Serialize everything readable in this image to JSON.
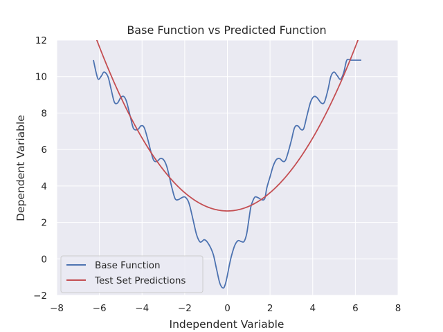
{
  "chart_data": {
    "type": "line",
    "title": "Base Function vs Predicted Function",
    "xlabel": "Independent Variable",
    "ylabel": "Dependent Variable",
    "xlim": [
      -8,
      8
    ],
    "ylim": [
      -2,
      12
    ],
    "xticks": [
      -8,
      -6,
      -4,
      -2,
      0,
      2,
      4,
      6,
      8
    ],
    "yticks": [
      -2,
      0,
      2,
      4,
      6,
      8,
      10,
      12
    ],
    "xtick_labels": [
      "−8",
      "−6",
      "−4",
      "−2",
      "0",
      "2",
      "4",
      "6",
      "8"
    ],
    "ytick_labels": [
      "−2",
      "0",
      "2",
      "4",
      "6",
      "8",
      "10",
      "12"
    ],
    "grid": true,
    "background": "#eaeaf2",
    "legend": {
      "placement": "lower-left"
    },
    "series": [
      {
        "name": "Base Function",
        "color": "#4c72b0",
        "x": [
          -6.28,
          -6.15,
          -6.05,
          -5.9,
          -5.78,
          -5.6,
          -5.45,
          -5.3,
          -5.15,
          -5.0,
          -4.85,
          -4.72,
          -4.55,
          -4.4,
          -4.2,
          -4.05,
          -3.9,
          -3.72,
          -3.58,
          -3.45,
          -3.3,
          -3.15,
          -3.0,
          -2.85,
          -2.72,
          -2.6,
          -2.45,
          -2.3,
          -2.15,
          -2.0,
          -1.85,
          -1.75,
          -1.6,
          -1.45,
          -1.3,
          -1.2,
          -1.1,
          -1.0,
          -0.9,
          -0.78,
          -0.65,
          -0.5,
          -0.35,
          -0.2,
          -0.1,
          0.0,
          0.1,
          0.2,
          0.35,
          0.5,
          0.65,
          0.78,
          0.9,
          1.0,
          1.1,
          1.2,
          1.3,
          1.45,
          1.6,
          1.75,
          1.85,
          2.0,
          2.15,
          2.3,
          2.45,
          2.6,
          2.72,
          2.85,
          3.0,
          3.15,
          3.3,
          3.45,
          3.58,
          3.72,
          3.9,
          4.05,
          4.2,
          4.4,
          4.55,
          4.72,
          4.85,
          5.0,
          5.15,
          5.3,
          5.45,
          5.6,
          5.78,
          5.9,
          6.05,
          6.15,
          6.28
        ],
        "y": [
          10.9,
          10.2,
          9.85,
          10.05,
          10.25,
          10.0,
          9.3,
          8.6,
          8.55,
          8.85,
          8.9,
          8.6,
          7.8,
          7.15,
          7.1,
          7.3,
          7.2,
          6.5,
          5.85,
          5.4,
          5.35,
          5.5,
          5.45,
          5.1,
          4.5,
          3.9,
          3.3,
          3.25,
          3.35,
          3.4,
          3.2,
          2.85,
          2.1,
          1.35,
          0.95,
          0.95,
          1.05,
          1.0,
          0.85,
          0.6,
          0.2,
          -0.6,
          -1.35,
          -1.6,
          -1.4,
          -0.9,
          -0.3,
          0.2,
          0.75,
          1.0,
          0.95,
          0.95,
          1.35,
          2.1,
          2.85,
          3.2,
          3.4,
          3.35,
          3.25,
          3.3,
          3.9,
          4.5,
          5.1,
          5.45,
          5.5,
          5.35,
          5.4,
          5.85,
          6.5,
          7.2,
          7.3,
          7.1,
          7.15,
          7.8,
          8.6,
          8.9,
          8.85,
          8.55,
          8.6,
          9.3,
          10.0,
          10.25,
          10.05,
          9.85,
          10.2,
          10.9,
          10.9,
          10.9,
          10.9,
          10.9,
          10.9
        ]
      },
      {
        "name": "Test Set Predictions",
        "color": "#c44e52",
        "curve": {
          "form": "quadratic",
          "vertex_x": 0,
          "vertex_y": 2.63,
          "a": 0.25,
          "x_range": [
            -6.28,
            6.28
          ]
        }
      }
    ]
  }
}
